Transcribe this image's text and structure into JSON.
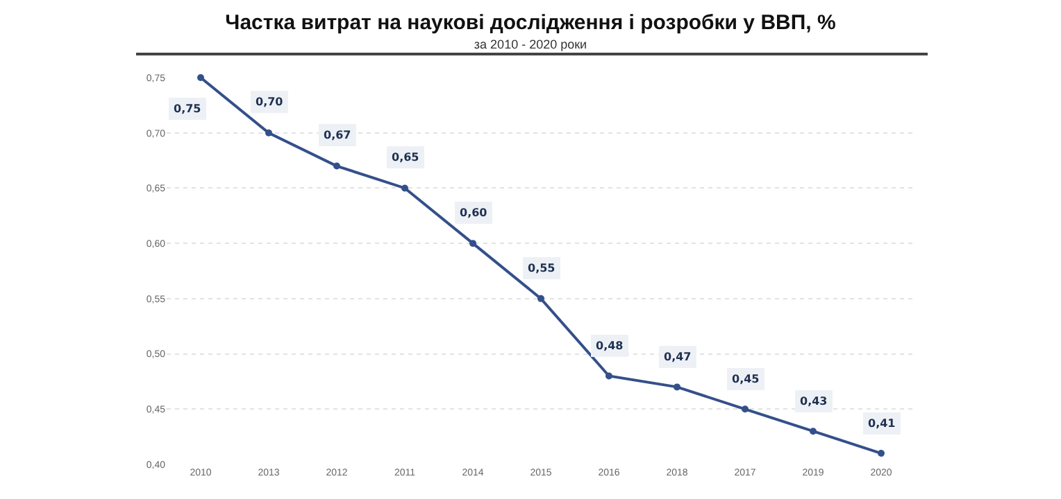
{
  "chart_data": {
    "type": "line",
    "title": "Частка витрат на наукові дослідження і розробки у ВВП, %",
    "subtitle": "за 2010 - 2020 роки",
    "categories": [
      "2010",
      "2013",
      "2012",
      "2011",
      "2014",
      "2015",
      "2016",
      "2018",
      "2017",
      "2019",
      "2020"
    ],
    "series": [
      {
        "color": "#34508a",
        "values": [
          0.75,
          0.7,
          0.67,
          0.65,
          0.6,
          0.55,
          0.48,
          0.47,
          0.45,
          0.43,
          0.41
        ],
        "value_labels": [
          "0,75",
          "0,70",
          "0,67",
          "0,65",
          "0,60",
          "0,55",
          "0,48",
          "0,47",
          "0,45",
          "0,43",
          "0,41"
        ]
      }
    ],
    "ylim": [
      0.4,
      0.75
    ],
    "yticks": [
      {
        "value": 0.4,
        "label": "0,40"
      },
      {
        "value": 0.45,
        "label": "0,45"
      },
      {
        "value": 0.5,
        "label": "0,50"
      },
      {
        "value": 0.55,
        "label": "0,55"
      },
      {
        "value": 0.6,
        "label": "0,60"
      },
      {
        "value": 0.65,
        "label": "0,65"
      },
      {
        "value": 0.7,
        "label": "0,70"
      },
      {
        "value": 0.75,
        "label": "0,75"
      }
    ],
    "grid": "y",
    "marker": "circle",
    "line_style": "solid",
    "legend": false
  }
}
